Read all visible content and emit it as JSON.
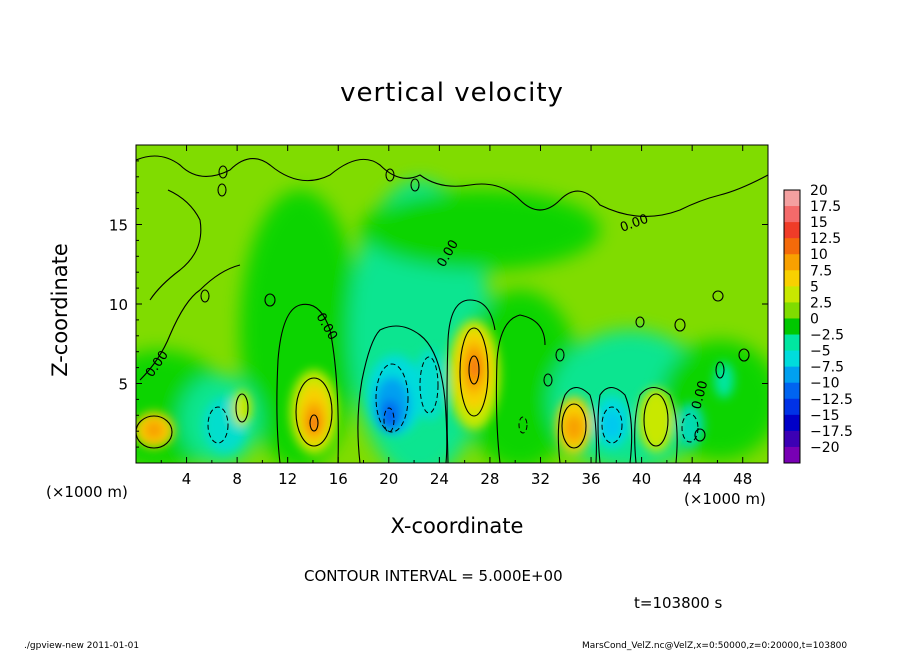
{
  "chart_data": {
    "type": "heatmap",
    "title": "vertical velocity",
    "xlabel": "X-coordinate",
    "ylabel": "Z-coordinate",
    "x_unit_label": "(×1000 m)",
    "xlim": [
      0,
      50
    ],
    "ylim": [
      0,
      20
    ],
    "x_ticks": [
      "4",
      "8",
      "12",
      "16",
      "20",
      "24",
      "28",
      "32",
      "36",
      "40",
      "44",
      "48"
    ],
    "y_ticks": [
      "5",
      "10",
      "15"
    ],
    "contour_label": "0.00",
    "contour_interval_text": "CONTOUR INTERVAL = 5.000E+00",
    "time_text": "t=103800 s",
    "colorbar": {
      "labels": [
        "20",
        "17.5",
        "15",
        "12.5",
        "10",
        "7.5",
        "5",
        "2.5",
        "0",
        "−2.5",
        "−5",
        "−7.5",
        "−10",
        "−12.5",
        "−15",
        "−17.5",
        "−20"
      ],
      "colors": [
        "#f4a0a0",
        "#f46a6a",
        "#f03c28",
        "#f46a0a",
        "#f8a000",
        "#f8d000",
        "#c8e800",
        "#80dc00",
        "#00c800",
        "#00e6a0",
        "#00dcdc",
        "#00a0f0",
        "#0064f0",
        "#0032e6",
        "#0000c8",
        "#3c00b4",
        "#7800b4"
      ]
    },
    "features": [
      {
        "x": 1.5,
        "z": 2.0,
        "value": 7.5
      },
      {
        "x": 6.0,
        "z": 2.5,
        "value": -5
      },
      {
        "x": 8.5,
        "z": 3.5,
        "value": 5
      },
      {
        "x": 14.0,
        "z": 2.5,
        "value": 12.5
      },
      {
        "x": 20.0,
        "z": 3.5,
        "value": -10
      },
      {
        "x": 23.0,
        "z": 4.5,
        "value": -7.5
      },
      {
        "x": 26.5,
        "z": 6.0,
        "value": 12.5
      },
      {
        "x": 34.5,
        "z": 2.5,
        "value": 7.5
      },
      {
        "x": 38.5,
        "z": 2.5,
        "value": -7.5
      },
      {
        "x": 41.0,
        "z": 2.5,
        "value": 5
      },
      {
        "x": 44.0,
        "z": 2.0,
        "value": -5
      }
    ]
  },
  "footer": {
    "left": "./gpview-new   2011-01-01",
    "right": "MarsCond_VelZ.nc@VelZ,x=0:50000,z=0:20000,t=103800"
  }
}
